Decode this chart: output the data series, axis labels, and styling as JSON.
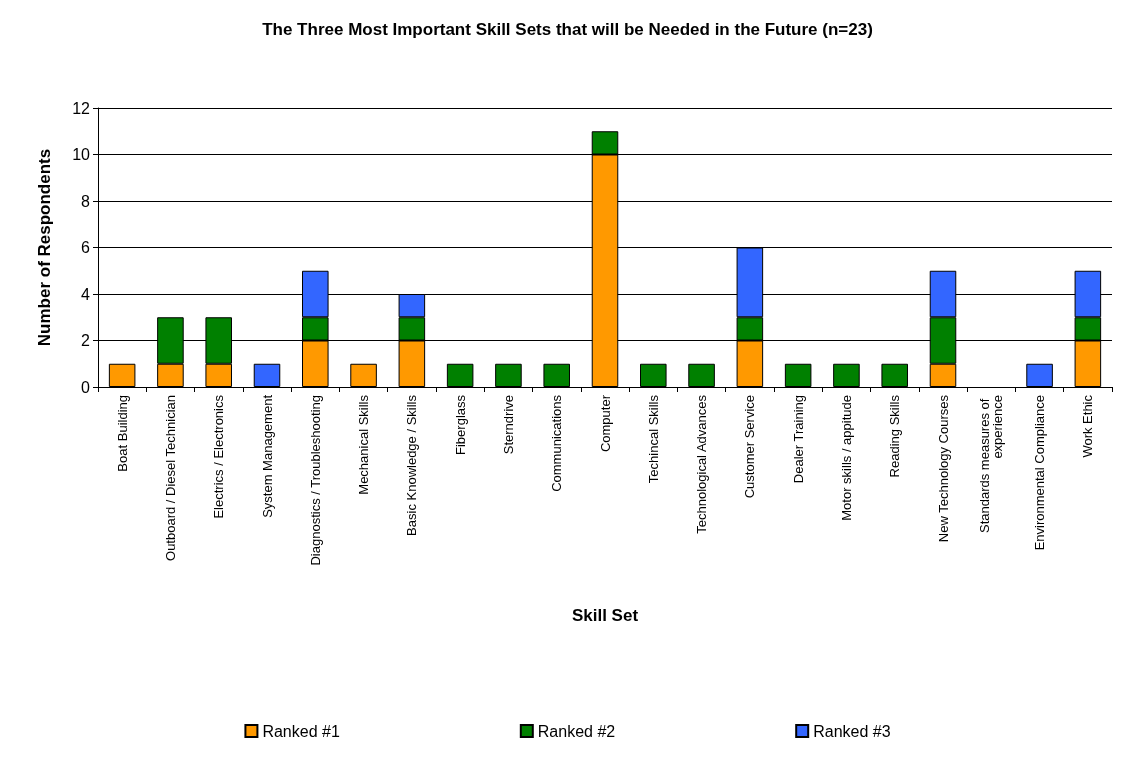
{
  "chart_data": {
    "type": "bar",
    "stacked": true,
    "title": "The Three Most Important Skill Sets that will be Needed in the Future (n=23)",
    "xlabel": "Skill Set",
    "ylabel": "Number of Respondents",
    "categories": [
      "Boat Building",
      "Outboard / Diesel Technician",
      "Electrics / Electronics",
      "System Management",
      "Diagnostics / Troubleshooting",
      "Mechanical Skills",
      "Basic Knowledge / Skills",
      "Fiberglass",
      "Sterndrive",
      "Communications",
      "Computer",
      "Techincal Skills",
      "Technological Advances",
      "Customer Service",
      "Dealer Training",
      "Motor skills / appitude",
      "Reading Skills",
      "New Technology Courses",
      "Standards measures of experience",
      "Environmental Compliance",
      "Work Ethic"
    ],
    "series": [
      {
        "name": "Ranked #1",
        "color": "#ff9900",
        "values": [
          1,
          1,
          1,
          0,
          2,
          1,
          2,
          0,
          0,
          0,
          10,
          0,
          0,
          2,
          0,
          0,
          0,
          1,
          0,
          0,
          2
        ]
      },
      {
        "name": "Ranked #2",
        "color": "#008000",
        "values": [
          0,
          2,
          2,
          0,
          1,
          0,
          1,
          1,
          1,
          1,
          1,
          1,
          1,
          1,
          1,
          1,
          1,
          2,
          0,
          0,
          1
        ]
      },
      {
        "name": "Ranked #3",
        "color": "#3366ff",
        "values": [
          0,
          0,
          0,
          1,
          2,
          0,
          1,
          0,
          0,
          0,
          0,
          0,
          0,
          3,
          0,
          0,
          0,
          2,
          0,
          1,
          2
        ]
      }
    ],
    "ylim": [
      0,
      12
    ],
    "yticks": [
      0,
      2,
      4,
      6,
      8,
      10,
      12
    ],
    "grid": "y",
    "legend": "bottom"
  }
}
